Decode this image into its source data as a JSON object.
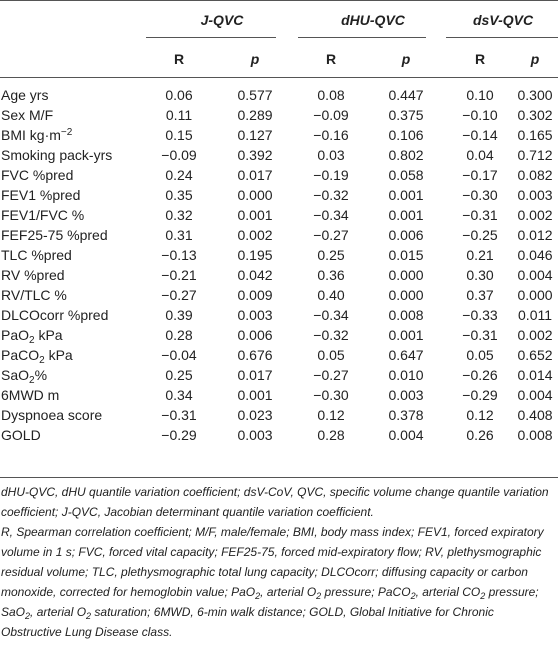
{
  "groups": [
    {
      "title": "J-QVC",
      "r_label": "R",
      "p_label": "p"
    },
    {
      "title": "dHU-QVC",
      "r_label": "R",
      "p_label": "p"
    },
    {
      "title": "dsV-QVC",
      "r_label": "R",
      "p_label": "p"
    }
  ],
  "rows": [
    {
      "label": "Age yrs",
      "values": [
        "0.06",
        "0.577",
        "0.08",
        "0.447",
        "0.10",
        "0.300"
      ]
    },
    {
      "label": "Sex M/F",
      "values": [
        "0.11",
        "0.289",
        "−0.09",
        "0.375",
        "−0.10",
        "0.302"
      ]
    },
    {
      "label_html": [
        "BMI kg·m",
        "−2",
        ""
      ],
      "label": "BMI kg·m−2",
      "values": [
        "0.15",
        "0.127",
        "−0.16",
        "0.106",
        "−0.14",
        "0.165"
      ]
    },
    {
      "label": "Smoking pack-yrs",
      "values": [
        "−0.09",
        "0.392",
        "0.03",
        "0.802",
        "0.04",
        "0.712"
      ]
    },
    {
      "label": "FVC %pred",
      "values": [
        "0.24",
        "0.017",
        "−0.19",
        "0.058",
        "−0.17",
        "0.082"
      ]
    },
    {
      "label": "FEV1 %pred",
      "values": [
        "0.35",
        "0.000",
        "−0.32",
        "0.001",
        "−0.30",
        "0.003"
      ]
    },
    {
      "label": "FEV1/FVC %",
      "values": [
        "0.32",
        "0.001",
        "−0.34",
        "0.001",
        "−0.31",
        "0.002"
      ]
    },
    {
      "label": "FEF25-75 %pred",
      "values": [
        "0.31",
        "0.002",
        "−0.27",
        "0.006",
        "−0.25",
        "0.012"
      ]
    },
    {
      "label": "TLC %pred",
      "values": [
        "−0.13",
        "0.195",
        "0.25",
        "0.015",
        "0.21",
        "0.046"
      ]
    },
    {
      "label": "RV %pred",
      "values": [
        "−0.21",
        "0.042",
        "0.36",
        "0.000",
        "0.30",
        "0.004"
      ]
    },
    {
      "label": "RV/TLC %",
      "values": [
        "−0.27",
        "0.009",
        "0.40",
        "0.000",
        "0.37",
        "0.000"
      ]
    },
    {
      "label": "DLCOcorr %pred",
      "values": [
        "0.39",
        "0.003",
        "−0.34",
        "0.008",
        "−0.33",
        "0.011"
      ]
    },
    {
      "label": "PaO2 kPa",
      "label_parts": [
        "Pa",
        "O",
        "2",
        " kPa"
      ],
      "values": [
        "0.28",
        "0.006",
        "−0.32",
        "0.001",
        "−0.31",
        "0.002"
      ]
    },
    {
      "label": "PaCO2 kPa",
      "label_parts": [
        "Pa",
        "CO",
        "2",
        " kPa"
      ],
      "values": [
        "−0.04",
        "0.676",
        "0.05",
        "0.647",
        "0.05",
        "0.652"
      ]
    },
    {
      "label": "SaO2%",
      "label_parts": [
        "Sa",
        "O",
        "2",
        "%"
      ],
      "values": [
        "0.25",
        "0.017",
        "−0.27",
        "0.010",
        "−0.26",
        "0.014"
      ]
    },
    {
      "label": "6MWD m",
      "values": [
        "0.34",
        "0.001",
        "−0.30",
        "0.003",
        "−0.29",
        "0.004"
      ]
    },
    {
      "label": "Dyspnoea score",
      "values": [
        "−0.31",
        "0.023",
        "0.12",
        "0.378",
        "0.12",
        "0.408"
      ]
    },
    {
      "label": "GOLD",
      "values": [
        "−0.29",
        "0.003",
        "0.28",
        "0.004",
        "0.26",
        "0.008"
      ]
    }
  ],
  "footnote": {
    "line1": "dHU-QVC, dHU quantile variation coefficient; dsV-CoV, QVC, specific volume change quantile variation coefficient; J-QVC, Jacobian determinant quantile variation coefficient.",
    "line2_parts": [
      "R, Spearman correlation coefficient; M/F, male/female; BMI, body mass index; FEV1, forced expiratory volume in 1 s; FVC, forced vital capacity; FEF25-75, forced mid-expiratory flow; RV, plethysmographic residual volume; TLC, plethysmographic total lung capacity; DLCOcorr; diffusing capacity or carbon monoxide, corrected for hemoglobin value; PaO",
      "2",
      ", arterial O",
      "2",
      " pressure; PaCO",
      "2",
      ", arterial CO",
      "2",
      " pressure; SaO",
      "2",
      ", arterial O",
      "2",
      " saturation; 6MWD, 6-min walk distance; GOLD, Global Initiative for Chronic Obstructive Lung Disease class."
    ]
  }
}
